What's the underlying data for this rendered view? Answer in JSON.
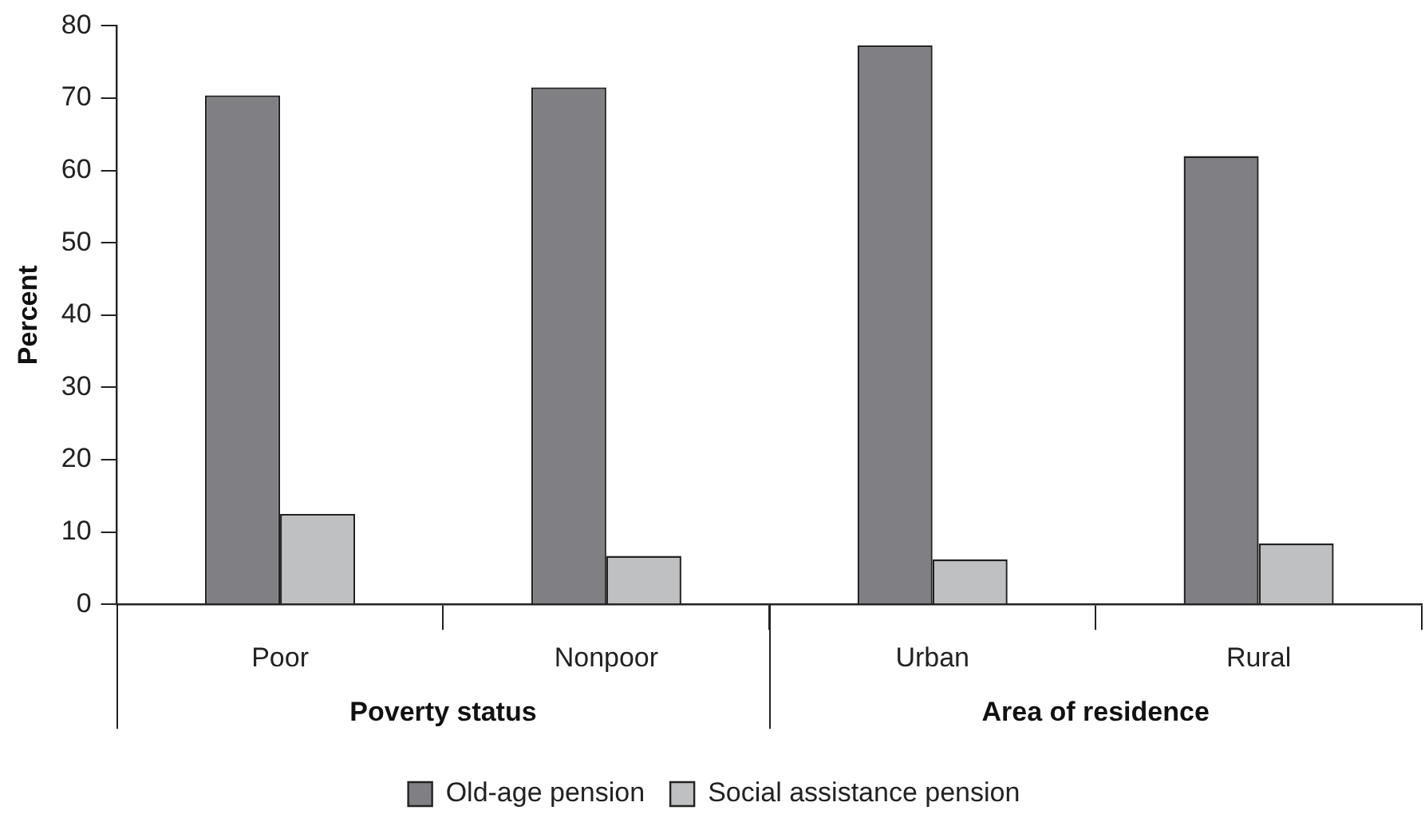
{
  "chart_data": {
    "type": "bar",
    "ylabel": "Percent",
    "categories": [
      "Poor",
      "Nonpoor",
      "Urban",
      "Rural"
    ],
    "series": [
      {
        "name": "Old-age pension",
        "color": "#808084",
        "values": [
          70.4,
          71.5,
          77.3,
          62.0
        ]
      },
      {
        "name": "Social assistance pension",
        "color": "#bfc0c2",
        "values": [
          12.5,
          6.7,
          6.2,
          8.4
        ]
      }
    ],
    "ylim": [
      0,
      80
    ],
    "yticks": [
      0,
      10,
      20,
      30,
      40,
      50,
      60,
      70,
      80
    ],
    "annotations": [
      "Poverty status",
      "Area of residence"
    ],
    "grid": false,
    "legend": "bottom"
  }
}
